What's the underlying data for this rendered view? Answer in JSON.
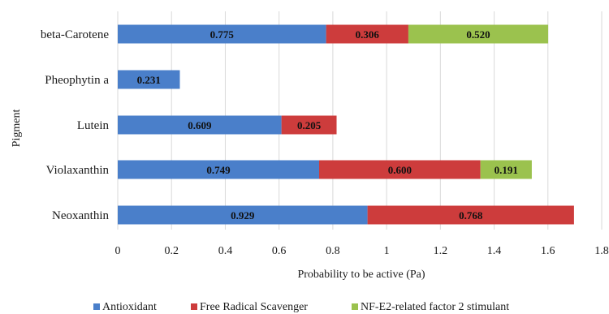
{
  "chart_data": {
    "type": "bar",
    "stacked": true,
    "orientation": "horizontal",
    "title": "",
    "xlabel": "Probability to be active (Pa)",
    "ylabel": "Pigment",
    "xlim": [
      0,
      1.8
    ],
    "xticks": [
      "0",
      "0.2",
      "0.4",
      "0.6",
      "0.8",
      "1",
      "1.2",
      "1.4",
      "1.6",
      "1.8"
    ],
    "grid": "vertical",
    "legend_position": "bottom",
    "categories": [
      "beta-Carotene",
      "Pheophytin a",
      "Lutein",
      "Violaxanthin",
      "Neoxanthin"
    ],
    "series": [
      {
        "name": "Antioxidant",
        "color": "#4a7fca",
        "values": [
          0.775,
          0.231,
          0.609,
          0.749,
          0.929
        ],
        "labels": [
          "0.775",
          "0.231",
          "0.609",
          "0.749",
          "0.929"
        ]
      },
      {
        "name": "Free Radical Scavenger",
        "color": "#cd3c3c",
        "values": [
          0.306,
          null,
          0.205,
          0.6,
          0.768
        ],
        "labels": [
          "0.306",
          "",
          "0.205",
          "0.600",
          "0.768"
        ]
      },
      {
        "name": "NF-E2-related factor 2 stimulant",
        "color": "#9bc24e",
        "values": [
          0.52,
          null,
          null,
          0.191,
          null
        ],
        "labels": [
          "0.520",
          "",
          "",
          "0.191",
          ""
        ]
      }
    ]
  }
}
